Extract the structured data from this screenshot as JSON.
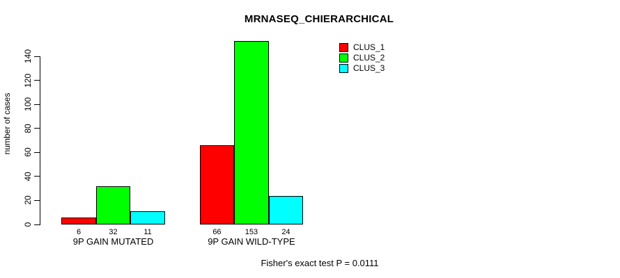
{
  "title": "MRNASEQ_CHIERARCHICAL",
  "chart_data": {
    "type": "bar",
    "title": "MRNASEQ_CHIERARCHICAL",
    "xlabel": "",
    "ylabel": "number of cases",
    "categories": [
      "9P GAIN MUTATED",
      "9P GAIN WILD-TYPE"
    ],
    "series": [
      {
        "name": "CLUS_1",
        "color": "#FF0000",
        "values": [
          6,
          66
        ]
      },
      {
        "name": "CLUS_2",
        "color": "#00FF00",
        "values": [
          32,
          153
        ]
      },
      {
        "name": "CLUS_3",
        "color": "#00FFFF",
        "values": [
          11,
          24
        ]
      }
    ],
    "value_labels_shown": true,
    "yticks": [
      0,
      20,
      40,
      60,
      80,
      100,
      120,
      140
    ],
    "ylim": [
      0,
      140
    ],
    "grid": false,
    "legend_position": "top-right",
    "bar_border_color": "#000000",
    "background_color": "#FFFFFF",
    "annotation": "Fisher's exact test P = 0.0111"
  }
}
